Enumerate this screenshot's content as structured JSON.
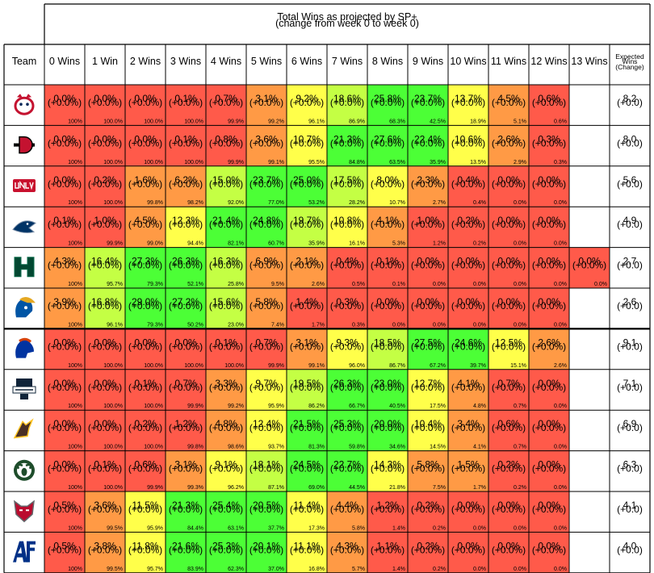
{
  "title": "Total Wins as projected by SP+",
  "subtitle": "(change from week 0 to week 0)",
  "team_header": "Team",
  "expected_header": [
    "Expected",
    "Wins",
    "(Change)"
  ],
  "colors": {
    "red": "#ff5a4a",
    "orange": "#ff9a45",
    "yellow": "#ffff4a",
    "lightgreen": "#c4ff44",
    "green": "#4cff36",
    "border": "#000000"
  },
  "chart_data": {
    "type": "table",
    "title": "Total Wins as projected by SP+",
    "subtitle": "(change from week 0 to week 0)",
    "columns": [
      "0 Wins",
      "1 Win",
      "2 Wins",
      "3 Wins",
      "4 Wins",
      "5 Wins",
      "6 Wins",
      "7 Wins",
      "8 Wins",
      "9 Wins",
      "10 Wins",
      "11 Wins",
      "12 Wins",
      "13 Wins"
    ],
    "change_label": "(+0.0%)",
    "expected_change_label": "(+0.0)",
    "rows": [
      {
        "team_icon": "bulldog-logo-icon",
        "cells": [
          "0.0%",
          "0.0%",
          "0.0%",
          "0.1%",
          "0.7%",
          "3.1%",
          "9.2%",
          "18.6%",
          "25.8%",
          "23.7%",
          "13.7%",
          "4.5%",
          "0.6%"
        ],
        "cumulative": [
          "100%",
          "100.0%",
          "100.0%",
          "100.0%",
          "99.9%",
          "99.2%",
          "96.1%",
          "86.9%",
          "68.3%",
          "42.5%",
          "18.9%",
          "5.1%",
          "0.6%"
        ],
        "expected": "8.2"
      },
      {
        "team_icon": "sd-logo-icon",
        "cells": [
          "0.0%",
          "0.0%",
          "0.0%",
          "0.1%",
          "0.8%",
          "3.6%",
          "10.7%",
          "21.3%",
          "27.6%",
          "22.4%",
          "10.6%",
          "2.6%",
          "0.3%"
        ],
        "cumulative": [
          "100%",
          "100.0%",
          "100.0%",
          "100.0%",
          "99.9%",
          "99.1%",
          "95.5%",
          "84.8%",
          "63.5%",
          "35.9%",
          "13.5%",
          "2.9%",
          "0.3%"
        ],
        "expected": "8.0"
      },
      {
        "team_icon": "unlv-logo-icon",
        "cells": [
          "0.0%",
          "0.2%",
          "1.6%",
          "6.2%",
          "15.0%",
          "23.7%",
          "25.0%",
          "17.5%",
          "8.0%",
          "2.3%",
          "0.4%",
          "0.0%",
          "0.0%"
        ],
        "cumulative": [
          "100%",
          "100.0%",
          "99.8%",
          "98.2%",
          "92.0%",
          "77.0%",
          "53.2%",
          "28.2%",
          "10.7%",
          "2.7%",
          "0.4%",
          "0.0%",
          "0.0%"
        ],
        "expected": "5.6"
      },
      {
        "team_icon": "wolfpack-logo-icon",
        "cells": [
          "0.1%",
          "1.0%",
          "4.5%",
          "12.3%",
          "21.4%",
          "24.8%",
          "19.7%",
          "10.8%",
          "4.1%",
          "1.0%",
          "0.2%",
          "0.0%",
          "0.0%"
        ],
        "cumulative": [
          "100%",
          "99.9%",
          "99.0%",
          "94.4%",
          "82.1%",
          "60.7%",
          "35.9%",
          "16.1%",
          "5.3%",
          "1.2%",
          "0.2%",
          "0.0%",
          "0.0%"
        ],
        "expected": "4.9"
      },
      {
        "team_icon": "h-logo-icon",
        "cells": [
          "4.3%",
          "16.4%",
          "27.3%",
          "26.3%",
          "16.3%",
          "6.9%",
          "2.1%",
          "0.4%",
          "0.1%",
          "0.0%",
          "0.0%",
          "0.0%",
          "0.0%",
          "0.0%"
        ],
        "cumulative": [
          "100%",
          "95.7%",
          "79.3%",
          "52.1%",
          "25.8%",
          "9.5%",
          "2.6%",
          "0.5%",
          "0.1%",
          "0.0%",
          "0.0%",
          "0.0%",
          "0.0%",
          "0.0%"
        ],
        "expected": "2.7"
      },
      {
        "team_icon": "spartan-logo-icon",
        "cells": [
          "3.9%",
          "16.8%",
          "29.0%",
          "27.2%",
          "15.6%",
          "5.8%",
          "1.4%",
          "0.3%",
          "0.0%",
          "0.0%",
          "0.0%",
          "0.0%",
          "0.0%"
        ],
        "cumulative": [
          "100%",
          "96.1%",
          "79.3%",
          "50.2%",
          "23.0%",
          "7.4%",
          "1.7%",
          "0.3%",
          "0.0%",
          "0.0%",
          "0.0%",
          "0.0%",
          "0.0%"
        ],
        "expected": "2.6"
      },
      {
        "team_icon": "bronco-logo-icon",
        "cells": [
          "0.0%",
          "0.0%",
          "0.0%",
          "0.0%",
          "0.1%",
          "0.7%",
          "3.1%",
          "9.3%",
          "18.5%",
          "27.5%",
          "24.6%",
          "12.5%",
          "2.6%"
        ],
        "cumulative": [
          "100%",
          "100.0%",
          "100.0%",
          "100.0%",
          "100.0%",
          "99.9%",
          "99.1%",
          "96.0%",
          "86.7%",
          "67.2%",
          "39.7%",
          "15.1%",
          "2.6%"
        ],
        "expected": "9.1"
      },
      {
        "team_icon": "usu-logo-icon",
        "cells": [
          "0.0%",
          "0.0%",
          "0.1%",
          "0.7%",
          "3.3%",
          "9.7%",
          "19.5%",
          "26.3%",
          "23.0%",
          "12.7%",
          "4.1%",
          "0.7%",
          "0.0%"
        ],
        "cumulative": [
          "100%",
          "100.0%",
          "100.0%",
          "99.9%",
          "99.2%",
          "95.9%",
          "86.2%",
          "66.7%",
          "40.5%",
          "17.5%",
          "4.8%",
          "0.7%",
          "0.0%"
        ],
        "expected": "7.1"
      },
      {
        "team_icon": "steamboat-logo-icon",
        "cells": [
          "0.0%",
          "0.0%",
          "0.2%",
          "1.2%",
          "4.8%",
          "12.4%",
          "21.5%",
          "25.3%",
          "20.0%",
          "10.4%",
          "3.4%",
          "0.6%",
          "0.0%"
        ],
        "cumulative": [
          "100%",
          "100.0%",
          "100.0%",
          "99.8%",
          "98.6%",
          "93.7%",
          "81.3%",
          "59.8%",
          "34.6%",
          "14.5%",
          "4.1%",
          "0.7%",
          "0.0%"
        ],
        "expected": "6.9"
      },
      {
        "team_icon": "ram-logo-icon",
        "cells": [
          "0.0%",
          "0.1%",
          "0.6%",
          "3.1%",
          "9.1%",
          "18.1%",
          "24.5%",
          "22.7%",
          "14.3%",
          "5.8%",
          "1.5%",
          "0.2%",
          "0.0%"
        ],
        "cumulative": [
          "100%",
          "100.0%",
          "99.9%",
          "99.3%",
          "96.2%",
          "87.1%",
          "69.0%",
          "44.5%",
          "21.8%",
          "7.5%",
          "1.7%",
          "0.2%",
          "0.0%"
        ],
        "expected": "6.3"
      },
      {
        "team_icon": "lobo-logo-icon",
        "cells": [
          "0.5%",
          "3.6%",
          "11.5%",
          "21.3%",
          "25.4%",
          "20.5%",
          "11.4%",
          "4.4%",
          "1.2%",
          "0.2%",
          "0.0%",
          "0.0%",
          "0.0%"
        ],
        "cumulative": [
          "100%",
          "99.5%",
          "95.9%",
          "84.4%",
          "63.1%",
          "37.7%",
          "17.3%",
          "5.8%",
          "1.4%",
          "0.2%",
          "0.0%",
          "0.0%",
          "0.0%"
        ],
        "expected": "4.1"
      },
      {
        "team_icon": "af-logo-icon",
        "cells": [
          "0.5%",
          "3.8%",
          "11.8%",
          "21.6%",
          "25.3%",
          "20.1%",
          "11.1%",
          "4.3%",
          "1.1%",
          "0.2%",
          "0.0%",
          "0.0%",
          "0.0%"
        ],
        "cumulative": [
          "100%",
          "99.5%",
          "95.7%",
          "83.9%",
          "62.3%",
          "37.0%",
          "16.8%",
          "5.7%",
          "1.4%",
          "0.2%",
          "0.0%",
          "0.0%",
          "0.0%"
        ],
        "expected": "4.0"
      }
    ]
  }
}
